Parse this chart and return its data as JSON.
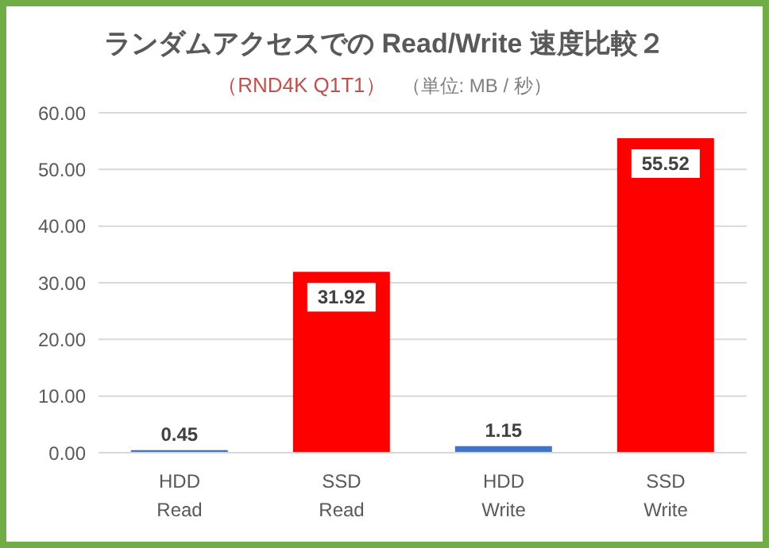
{
  "chart_data": {
    "type": "bar",
    "title": "ランダムアクセスでの Read/Write 速度比較２",
    "subtitle": "（RND4K Q1T1）",
    "annotations": [
      "（単位: MB / 秒）"
    ],
    "categories": [
      "HDD Read",
      "SSD Read",
      "HDD Write",
      "SSD Write"
    ],
    "values": [
      0.45,
      31.92,
      1.15,
      55.52
    ],
    "colors": [
      "#4472c4",
      "#ff0000",
      "#4472c4",
      "#ff0000"
    ],
    "ylim": [
      0,
      60
    ],
    "yticks": [
      {
        "value": 0,
        "label": "0.00"
      },
      {
        "value": 10,
        "label": "10.00"
      },
      {
        "value": 20,
        "label": "20.00"
      },
      {
        "value": 30,
        "label": "30.00"
      },
      {
        "value": 40,
        "label": "40.00"
      },
      {
        "value": 50,
        "label": "50.00"
      },
      {
        "value": 60,
        "label": "60.00"
      }
    ],
    "data_labels": true,
    "grid": "y",
    "legend": false
  }
}
